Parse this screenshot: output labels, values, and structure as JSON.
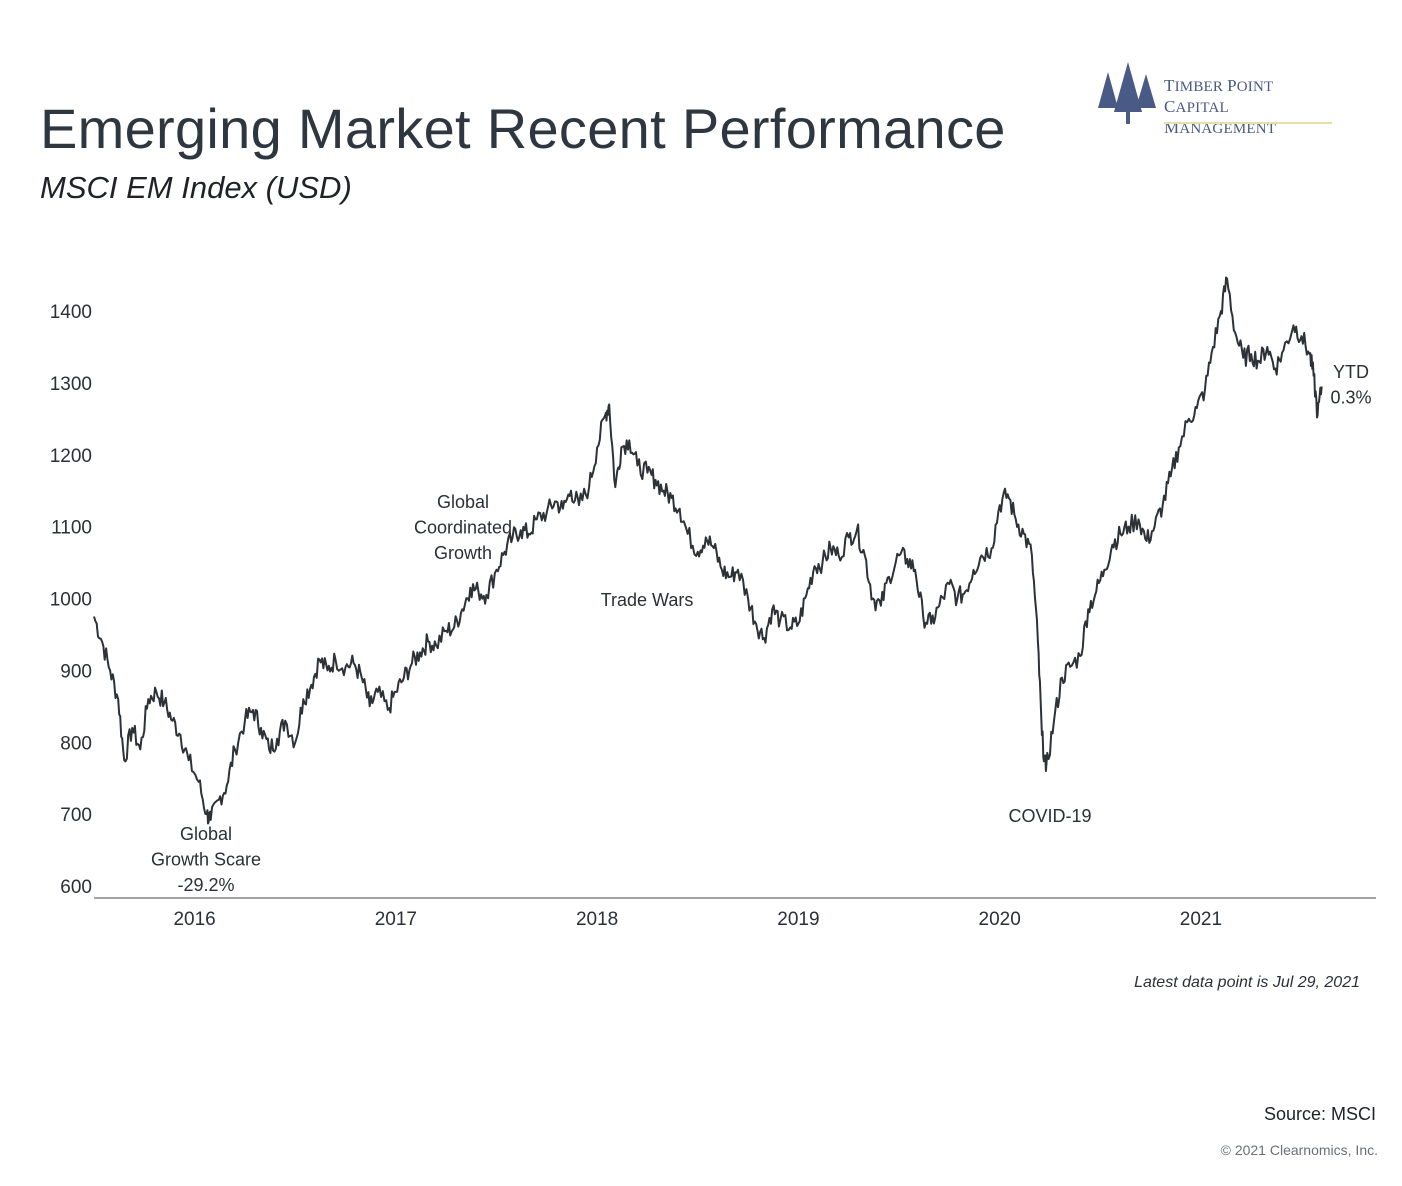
{
  "header": {
    "title": "Emerging Market Recent Performance",
    "subtitle": "MSCI EM Index (USD)"
  },
  "logo": {
    "icon": "pine-trees-icon",
    "line1_cap": "T",
    "line1_rest": "IMBER ",
    "line1_cap2": "P",
    "line1_rest2": "OINT",
    "line2_cap": "C",
    "line2_rest": "APITAL ",
    "line2_cap2": "M",
    "line2_rest2": "ANAGEMENT",
    "color": "#4a5a86"
  },
  "chart_data": {
    "type": "line",
    "title": "Emerging Market Recent Performance",
    "subtitle": "MSCI EM Index (USD)",
    "xlabel": "",
    "ylabel": "",
    "xlim": [
      2015.5,
      2021.87
    ],
    "ylim": [
      600,
      1400
    ],
    "yticks": [
      600,
      700,
      800,
      900,
      1000,
      1100,
      1200,
      1300,
      1400
    ],
    "xticks": [
      2016,
      2017,
      2018,
      2019,
      2020,
      2021
    ],
    "grid": false,
    "line_color": "#2d3238",
    "series": [
      {
        "name": "",
        "points": [
          [
            2015.5,
            975
          ],
          [
            2015.54,
            940
          ],
          [
            2015.58,
            900
          ],
          [
            2015.62,
            860
          ],
          [
            2015.65,
            775
          ],
          [
            2015.69,
            820
          ],
          [
            2015.73,
            790
          ],
          [
            2015.77,
            860
          ],
          [
            2015.81,
            870
          ],
          [
            2015.85,
            855
          ],
          [
            2015.89,
            830
          ],
          [
            2015.93,
            810
          ],
          [
            2015.97,
            775
          ],
          [
            2016.02,
            745
          ],
          [
            2016.06,
            700
          ],
          [
            2016.08,
            692
          ],
          [
            2016.12,
            720
          ],
          [
            2016.16,
            740
          ],
          [
            2016.2,
            790
          ],
          [
            2016.25,
            830
          ],
          [
            2016.29,
            845
          ],
          [
            2016.33,
            820
          ],
          [
            2016.37,
            790
          ],
          [
            2016.41,
            805
          ],
          [
            2016.45,
            830
          ],
          [
            2016.5,
            800
          ],
          [
            2016.54,
            860
          ],
          [
            2016.58,
            880
          ],
          [
            2016.62,
            915
          ],
          [
            2016.66,
            900
          ],
          [
            2016.7,
            915
          ],
          [
            2016.75,
            905
          ],
          [
            2016.79,
            910
          ],
          [
            2016.83,
            890
          ],
          [
            2016.87,
            850
          ],
          [
            2016.91,
            870
          ],
          [
            2016.96,
            845
          ],
          [
            2017.0,
            870
          ],
          [
            2017.04,
            890
          ],
          [
            2017.08,
            910
          ],
          [
            2017.12,
            925
          ],
          [
            2017.16,
            940
          ],
          [
            2017.2,
            935
          ],
          [
            2017.25,
            955
          ],
          [
            2017.29,
            960
          ],
          [
            2017.33,
            985
          ],
          [
            2017.37,
            1015
          ],
          [
            2017.41,
            1010
          ],
          [
            2017.45,
            1005
          ],
          [
            2017.5,
            1040
          ],
          [
            2017.54,
            1065
          ],
          [
            2017.58,
            1085
          ],
          [
            2017.62,
            1095
          ],
          [
            2017.66,
            1090
          ],
          [
            2017.7,
            1110
          ],
          [
            2017.75,
            1120
          ],
          [
            2017.79,
            1135
          ],
          [
            2017.83,
            1125
          ],
          [
            2017.87,
            1150
          ],
          [
            2017.91,
            1130
          ],
          [
            2017.96,
            1155
          ],
          [
            2018.0,
            1210
          ],
          [
            2018.04,
            1255
          ],
          [
            2018.06,
            1270
          ],
          [
            2018.09,
            1155
          ],
          [
            2018.12,
            1210
          ],
          [
            2018.16,
            1220
          ],
          [
            2018.2,
            1185
          ],
          [
            2018.25,
            1175
          ],
          [
            2018.29,
            1165
          ],
          [
            2018.33,
            1150
          ],
          [
            2018.37,
            1140
          ],
          [
            2018.41,
            1125
          ],
          [
            2018.45,
            1090
          ],
          [
            2018.5,
            1065
          ],
          [
            2018.54,
            1085
          ],
          [
            2018.58,
            1070
          ],
          [
            2018.62,
            1040
          ],
          [
            2018.66,
            1030
          ],
          [
            2018.7,
            1040
          ],
          [
            2018.75,
            1000
          ],
          [
            2018.79,
            965
          ],
          [
            2018.83,
            945
          ],
          [
            2018.87,
            985
          ],
          [
            2018.91,
            970
          ],
          [
            2018.96,
            960
          ],
          [
            2019.0,
            965
          ],
          [
            2019.04,
            1005
          ],
          [
            2019.08,
            1045
          ],
          [
            2019.12,
            1050
          ],
          [
            2019.16,
            1070
          ],
          [
            2019.2,
            1060
          ],
          [
            2019.25,
            1085
          ],
          [
            2019.29,
            1095
          ],
          [
            2019.33,
            1060
          ],
          [
            2019.37,
            1000
          ],
          [
            2019.41,
            990
          ],
          [
            2019.45,
            1030
          ],
          [
            2019.5,
            1060
          ],
          [
            2019.54,
            1055
          ],
          [
            2019.58,
            1040
          ],
          [
            2019.62,
            975
          ],
          [
            2019.66,
            965
          ],
          [
            2019.7,
            990
          ],
          [
            2019.75,
            1020
          ],
          [
            2019.79,
            1000
          ],
          [
            2019.83,
            1010
          ],
          [
            2019.87,
            1040
          ],
          [
            2019.91,
            1060
          ],
          [
            2019.96,
            1070
          ],
          [
            2020.0,
            1130
          ],
          [
            2020.04,
            1145
          ],
          [
            2020.08,
            1110
          ],
          [
            2020.12,
            1090
          ],
          [
            2020.16,
            1060
          ],
          [
            2020.19,
            940
          ],
          [
            2020.21,
            810
          ],
          [
            2020.23,
            760
          ],
          [
            2020.27,
            830
          ],
          [
            2020.31,
            890
          ],
          [
            2020.35,
            905
          ],
          [
            2020.4,
            920
          ],
          [
            2020.44,
            985
          ],
          [
            2020.48,
            1010
          ],
          [
            2020.52,
            1040
          ],
          [
            2020.56,
            1075
          ],
          [
            2020.6,
            1090
          ],
          [
            2020.64,
            1100
          ],
          [
            2020.69,
            1110
          ],
          [
            2020.73,
            1080
          ],
          [
            2020.77,
            1100
          ],
          [
            2020.81,
            1130
          ],
          [
            2020.85,
            1170
          ],
          [
            2020.89,
            1210
          ],
          [
            2020.94,
            1250
          ],
          [
            2020.98,
            1265
          ],
          [
            2021.02,
            1290
          ],
          [
            2021.06,
            1350
          ],
          [
            2021.1,
            1400
          ],
          [
            2021.13,
            1445
          ],
          [
            2021.17,
            1370
          ],
          [
            2021.21,
            1335
          ],
          [
            2021.25,
            1340
          ],
          [
            2021.29,
            1330
          ],
          [
            2021.33,
            1350
          ],
          [
            2021.37,
            1320
          ],
          [
            2021.41,
            1345
          ],
          [
            2021.46,
            1380
          ],
          [
            2021.5,
            1365
          ],
          [
            2021.54,
            1340
          ],
          [
            2021.56,
            1310
          ],
          [
            2021.58,
            1255
          ],
          [
            2021.6,
            1295
          ]
        ]
      }
    ],
    "annotations": [
      {
        "id": "growth-scare",
        "lines": [
          "Global",
          "Growth Scare",
          "-29.2%"
        ]
      },
      {
        "id": "coordinated-growth",
        "lines": [
          "Global",
          "Coordinated",
          "Growth"
        ]
      },
      {
        "id": "trade-wars",
        "lines": [
          "Trade Wars"
        ]
      },
      {
        "id": "covid",
        "lines": [
          "COVID-19"
        ]
      },
      {
        "id": "ytd",
        "lines": [
          "YTD",
          "0.3%"
        ]
      }
    ]
  },
  "footer": {
    "latest": "Latest data point is Jul 29, 2021",
    "source": "Source: MSCI",
    "copyright": "© 2021 Clearnomics, Inc."
  }
}
